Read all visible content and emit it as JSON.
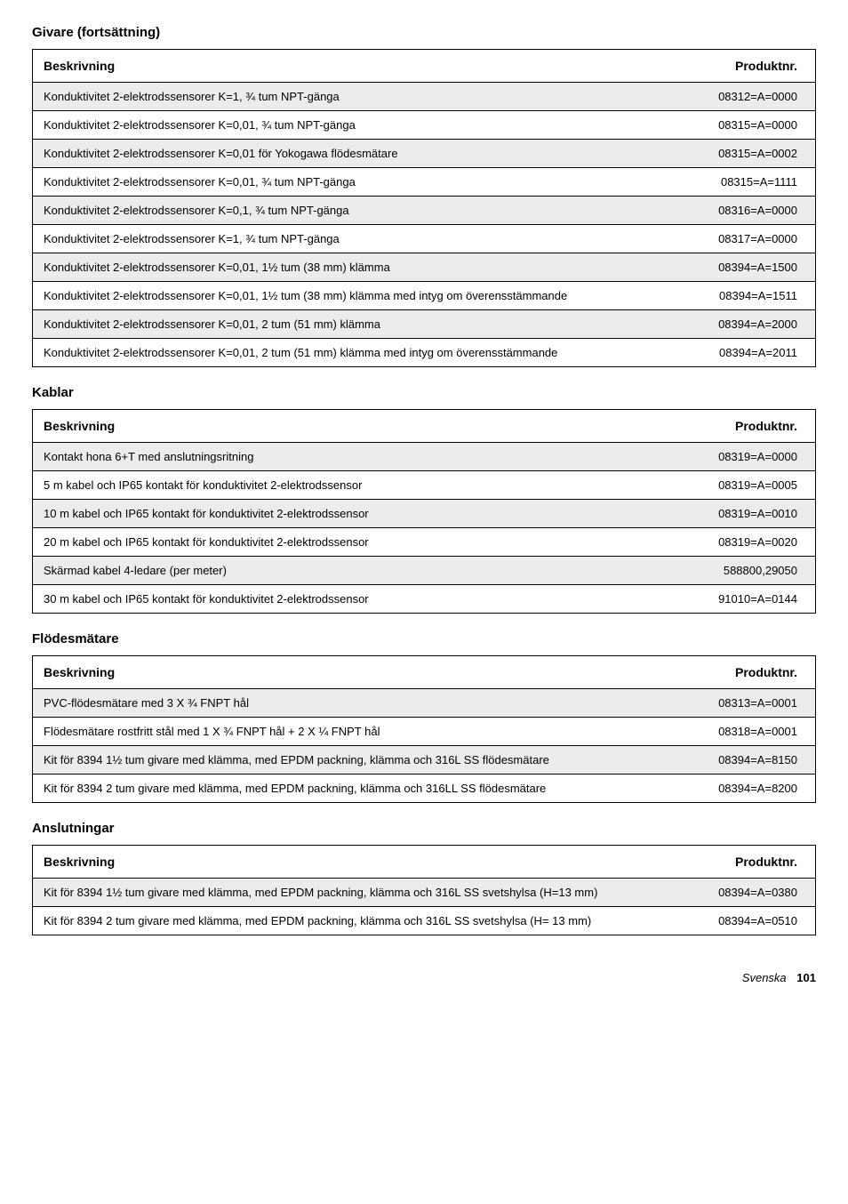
{
  "sectionGivare": {
    "title": "Givare (fortsättning)",
    "header": {
      "desc": "Beskrivning",
      "prod": "Produktnr."
    },
    "rows": [
      {
        "desc": "Konduktivitet 2-elektrodssensorer K=1, ¾ tum NPT-gänga",
        "prod": "08312=A=0000"
      },
      {
        "desc": "Konduktivitet 2-elektrodssensorer K=0,01, ¾ tum NPT-gänga",
        "prod": "08315=A=0000"
      },
      {
        "desc": "Konduktivitet 2-elektrodssensorer K=0,01 för Yokogawa flödesmätare",
        "prod": "08315=A=0002"
      },
      {
        "desc": "Konduktivitet 2-elektrodssensorer K=0,01, ¾ tum NPT-gänga",
        "prod": "08315=A=1111"
      },
      {
        "desc": "Konduktivitet 2-elektrodssensorer K=0,1, ¾ tum NPT-gänga",
        "prod": "08316=A=0000"
      },
      {
        "desc": "Konduktivitet 2-elektrodssensorer K=1, ¾ tum NPT-gänga",
        "prod": "08317=A=0000"
      },
      {
        "desc": "Konduktivitet 2-elektrodssensorer K=0,01, 1½ tum (38 mm) klämma",
        "prod": "08394=A=1500"
      },
      {
        "desc": "Konduktivitet 2-elektrodssensorer K=0,01, 1½ tum (38 mm) klämma med intyg om överensstämmande",
        "prod": "08394=A=1511"
      },
      {
        "desc": "Konduktivitet 2-elektrodssensorer K=0,01, 2 tum (51 mm) klämma",
        "prod": "08394=A=2000"
      },
      {
        "desc": "Konduktivitet 2-elektrodssensorer K=0,01, 2 tum (51 mm) klämma med intyg om överensstämmande",
        "prod": "08394=A=2011"
      }
    ]
  },
  "sectionKablar": {
    "title": "Kablar",
    "header": {
      "desc": "Beskrivning",
      "prod": "Produktnr."
    },
    "rows": [
      {
        "desc": "Kontakt hona 6+T med anslutningsritning",
        "prod": "08319=A=0000"
      },
      {
        "desc": "5 m kabel och IP65 kontakt för konduktivitet 2-elektrodssensor",
        "prod": "08319=A=0005"
      },
      {
        "desc": "10 m kabel och IP65 kontakt för konduktivitet 2-elektrodssensor",
        "prod": "08319=A=0010"
      },
      {
        "desc": "20 m kabel och IP65 kontakt för konduktivitet 2-elektrodssensor",
        "prod": "08319=A=0020"
      },
      {
        "desc": "Skärmad kabel 4-ledare (per meter)",
        "prod": "588800,29050"
      },
      {
        "desc": "30 m kabel och IP65 kontakt för konduktivitet 2-elektrodssensor",
        "prod": "91010=A=0144"
      }
    ]
  },
  "sectionFlodes": {
    "title": "Flödesmätare",
    "header": {
      "desc": "Beskrivning",
      "prod": "Produktnr."
    },
    "rows": [
      {
        "desc": "PVC-flödesmätare med 3 X ¾ FNPT hål",
        "prod": "08313=A=0001"
      },
      {
        "desc": "Flödesmätare rostfritt stål med 1 X ¾ FNPT hål + 2 X ¼ FNPT hål",
        "prod": "08318=A=0001"
      },
      {
        "desc": "Kit för 8394 1½ tum givare med klämma, med EPDM packning, klämma och 316L SS flödesmätare",
        "prod": "08394=A=8150"
      },
      {
        "desc": "Kit för 8394 2 tum givare med klämma, med EPDM packning, klämma och 316LL SS flödesmätare",
        "prod": "08394=A=8200"
      }
    ]
  },
  "sectionAnslut": {
    "title": "Anslutningar",
    "header": {
      "desc": "Beskrivning",
      "prod": "Produktnr."
    },
    "rows": [
      {
        "desc": "Kit för 8394 1½ tum givare med klämma, med EPDM packning, klämma och 316L SS svetshylsa (H=13 mm)",
        "prod": "08394=A=0380"
      },
      {
        "desc": "Kit för 8394 2 tum givare med klämma, med EPDM packning, klämma och 316L SS svetshylsa (H= 13 mm)",
        "prod": "08394=A=0510"
      }
    ]
  },
  "footer": {
    "lang": "Svenska",
    "page": "101"
  }
}
